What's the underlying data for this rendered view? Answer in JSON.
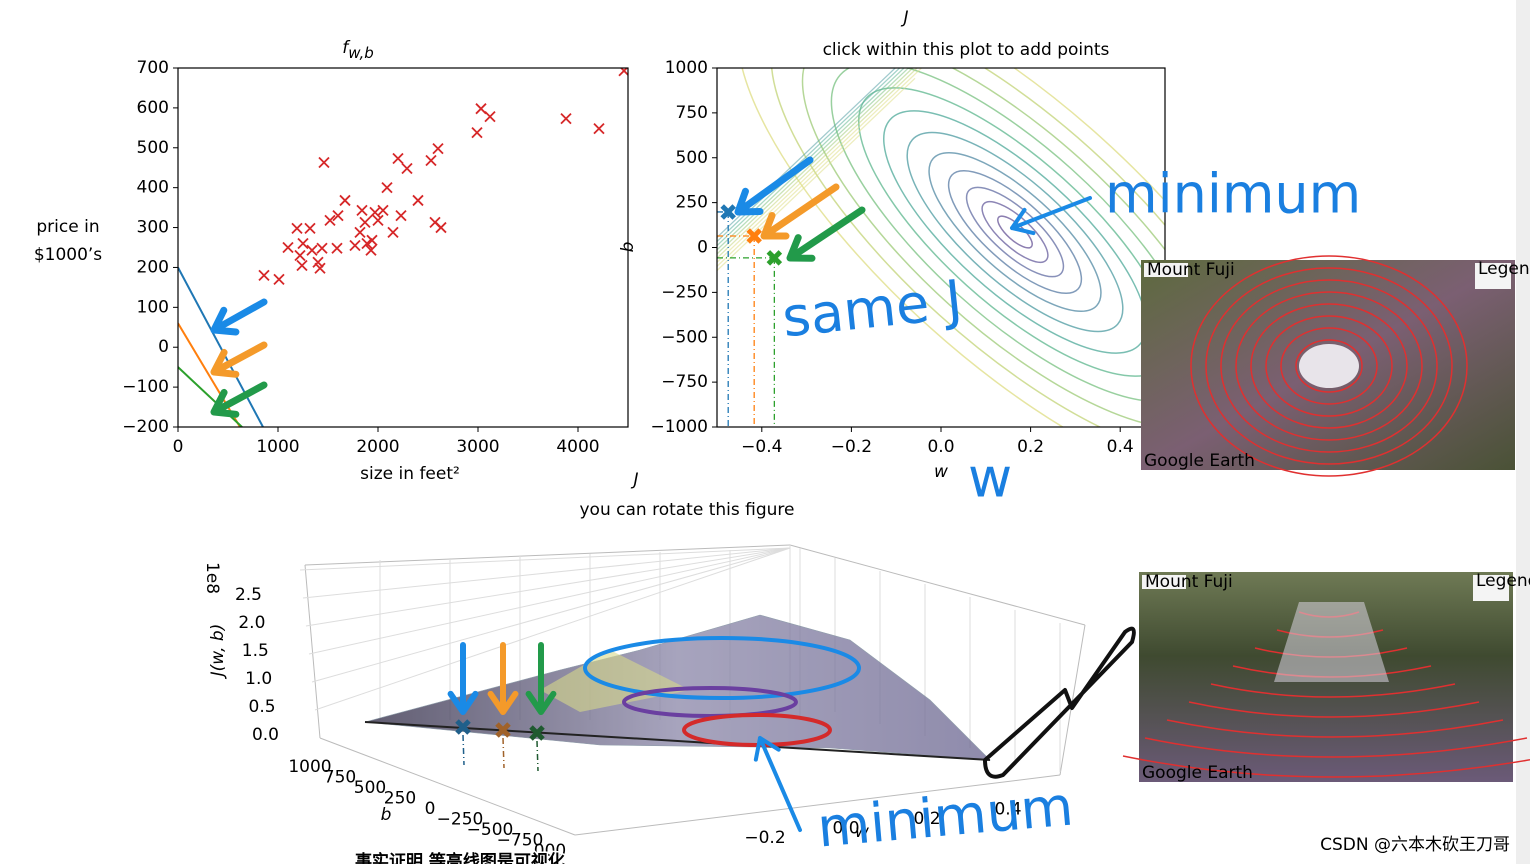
{
  "chart_data": [
    {
      "type": "scatter",
      "title": "f",
      "title_subscript": "w,b",
      "xlabel": "size in feet²",
      "ylabel": [
        "price in",
        "$1000’s"
      ],
      "x": [
        860,
        1010,
        1100,
        1190,
        1220,
        1240,
        1320,
        1250,
        1340,
        1400,
        1420,
        1440,
        1460,
        1520,
        1590,
        1600,
        1670,
        1770,
        1820,
        1840,
        1870,
        1890,
        1930,
        1940,
        1970,
        2000,
        2050,
        2090,
        2150,
        2200,
        2230,
        2290,
        2400,
        2530,
        2570,
        2600,
        2630,
        2990,
        3030,
        3120,
        3880,
        4210,
        4460
      ],
      "values": [
        180,
        170,
        250,
        298,
        230,
        205,
        298,
        260,
        243,
        213,
        198,
        248,
        463,
        318,
        248,
        330,
        368,
        255,
        288,
        343,
        313,
        260,
        243,
        268,
        338,
        318,
        343,
        400,
        288,
        473,
        330,
        448,
        368,
        468,
        313,
        498,
        300,
        538,
        598,
        578,
        573,
        548,
        693
      ],
      "color": "#d62728",
      "lines": [
        {
          "color": "#1f77b4",
          "x": [
            0,
            850
          ],
          "values": [
            200,
            -200
          ]
        },
        {
          "color": "#ff7f0e",
          "x": [
            0,
            620
          ],
          "values": [
            60,
            -200
          ]
        },
        {
          "color": "#2ca02c",
          "x": [
            0,
            640
          ],
          "values": [
            -50,
            -200
          ]
        }
      ],
      "xlim": [
        0,
        4500
      ],
      "ylim": [
        -200,
        700
      ],
      "xticks": [
        0,
        1000,
        2000,
        3000,
        4000
      ],
      "yticks": [
        {
          "value": -200,
          "label": "−200"
        },
        {
          "value": -100,
          "label": "−100"
        },
        0,
        100,
        200,
        300,
        400,
        500,
        600,
        700
      ]
    },
    {
      "type": "contour",
      "top_label": "J",
      "title": "click within this plot to add points",
      "xlabel": "w",
      "ylabel": "b",
      "series": [
        {
          "color": "#1f77b4",
          "x": [
            -0.475
          ],
          "values": [
            198
          ]
        },
        {
          "color": "#ff7f0e",
          "x": [
            -0.417
          ],
          "values": [
            64
          ]
        },
        {
          "color": "#2ca02c",
          "x": [
            -0.372
          ],
          "values": [
            -58
          ]
        }
      ],
      "xlim": [
        -0.5,
        0.5
      ],
      "ylim": [
        -1000,
        1000
      ],
      "xticks": [
        {
          "value": -0.4,
          "label": "−0.4"
        },
        {
          "value": -0.2,
          "label": "−0.2"
        },
        {
          "value": 0,
          "label": "0.0"
        },
        0.2,
        0.4
      ],
      "yticks": [
        {
          "value": -1000,
          "label": "−1000"
        },
        {
          "value": -750,
          "label": "−750"
        },
        {
          "value": -500,
          "label": "−500"
        },
        {
          "value": -250,
          "label": "−250"
        },
        0,
        250,
        500,
        750,
        1000
      ]
    }
  ],
  "surface_plot": {
    "top_label": "J",
    "title": "you can rotate this figure",
    "offset_label": "1e8",
    "zlabel": "J(w, b)",
    "zticks": [
      "0.0",
      "0.5",
      "1.0",
      "1.5",
      "2.0",
      "2.5"
    ],
    "blabel": "b",
    "bticks": [
      "1000",
      "750",
      "500",
      "250",
      "0",
      "−250",
      "−500",
      "−750",
      "000"
    ],
    "wlabel": "w",
    "wticks": [
      "−0.2",
      "0.0",
      "0.2",
      "0.4"
    ]
  },
  "annotations": {
    "minimum_top": "minimum",
    "same_j": "same J",
    "w_axis": "w",
    "minimum_bottom": "minimum"
  },
  "images": [
    {
      "title": "Mount Fuji",
      "legend": "Legend",
      "credit": "Google Earth"
    },
    {
      "title": "Mount Fuji",
      "legend": "Legend",
      "credit": "Google Earth"
    }
  ],
  "subtitle": "事实证明 等高线图是可视化",
  "watermark": "CSDN @六本木砍王刀哥"
}
